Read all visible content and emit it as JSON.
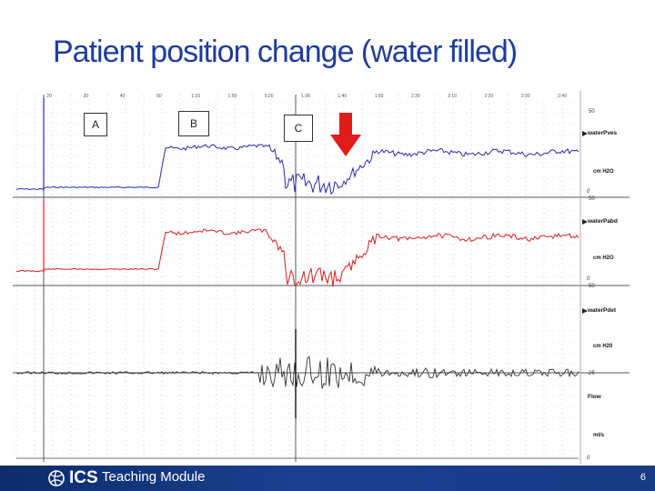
{
  "slide": {
    "title": "Patient position change (water filled)",
    "page_number": "6"
  },
  "footer": {
    "logo_text": "ICS",
    "module_label": "Teaching Module"
  },
  "markers": {
    "a": "A",
    "b": "B",
    "c": "C"
  },
  "trace": {
    "time_ticks": [
      "20",
      "30",
      "40",
      "50",
      "1:10",
      "1:50",
      "5:20",
      "1:30",
      "1:40",
      "1:50",
      "2:30",
      "2:10",
      "2:20",
      "2:30",
      "2:40"
    ],
    "channels": [
      {
        "name": "waterPves",
        "unit": "cm H2O",
        "scale_top": "50",
        "scale_bottom": "0",
        "color": "#2a2ab0"
      },
      {
        "name": "waterPabd",
        "unit": "cm H2O",
        "scale_top": "50",
        "scale_bottom": "0",
        "color": "#d42020"
      },
      {
        "name": "waterPdet",
        "unit": "cm H20",
        "scale_top": "50",
        "scale_bottom": "-25",
        "color": "#333333"
      },
      {
        "name": "Flow",
        "unit": "ml/s",
        "scale_top": "",
        "scale_bottom": "0",
        "color": "#222222"
      }
    ],
    "arrow_color": "#e21b1b"
  }
}
